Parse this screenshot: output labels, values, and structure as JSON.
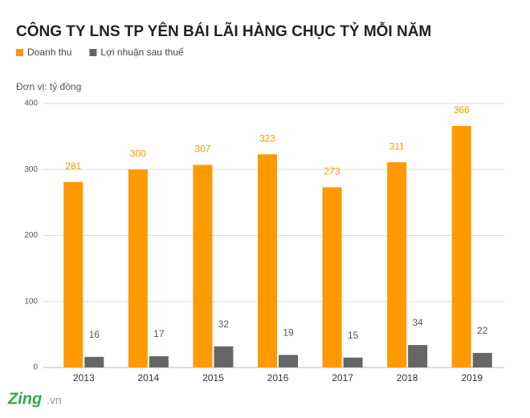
{
  "chart_data": {
    "type": "bar",
    "title": "CÔNG TY LNS TP YÊN BÁI LÃI HÀNG CHỤC TỶ MỖI NĂM",
    "unit_label": "Đơn vị: tỷ đồng",
    "categories": [
      "2013",
      "2014",
      "2015",
      "2016",
      "2017",
      "2018",
      "2019"
    ],
    "series": [
      {
        "name": "Doanh thu",
        "color": "#ff9900",
        "values": [
          281,
          300,
          307,
          323,
          273,
          311,
          366
        ]
      },
      {
        "name": "Lợi nhuận sau thuế",
        "color": "#666666",
        "values": [
          16,
          17,
          32,
          19,
          15,
          34,
          22
        ]
      }
    ],
    "ylim": [
      0,
      400
    ],
    "yticks": [
      0,
      100,
      200,
      300,
      400
    ],
    "grid": true
  },
  "logo": {
    "brand": "Zing",
    "suffix": ".vn"
  }
}
